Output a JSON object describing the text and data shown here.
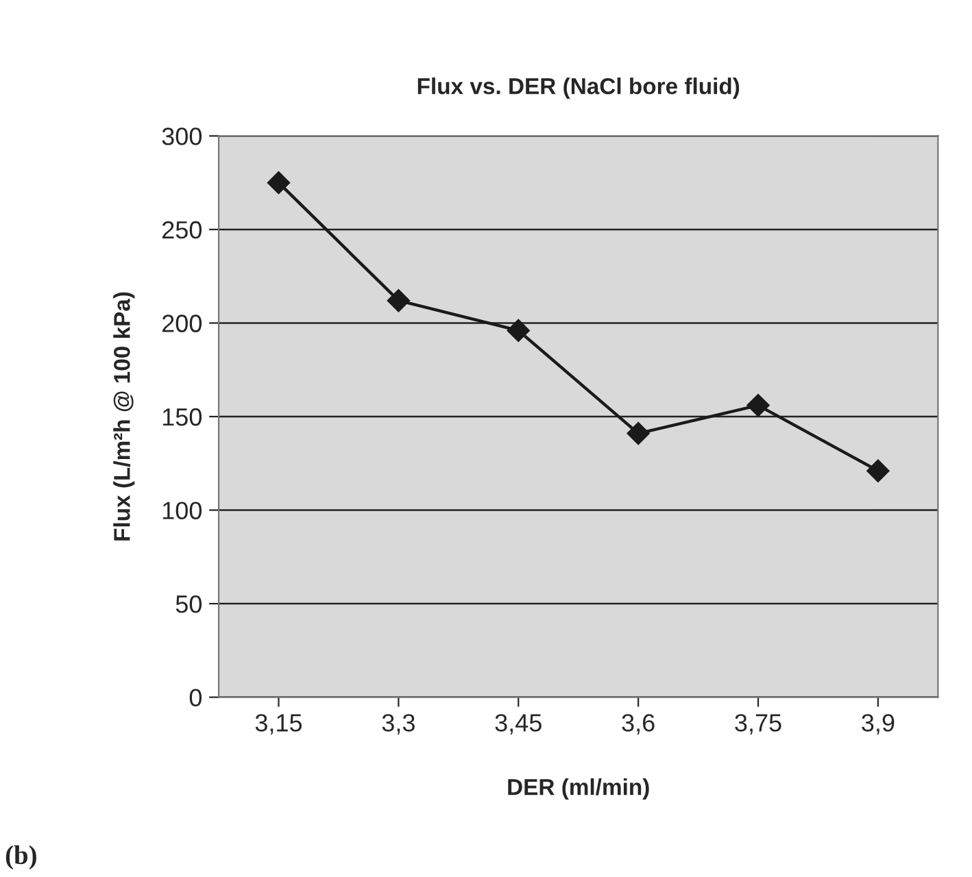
{
  "chart_data": {
    "type": "line",
    "title": "Flux vs. DER (NaCl bore fluid)",
    "xlabel": "DER (ml/min)",
    "ylabel": "Flux (L/m²h @ 100 kPa)",
    "categories": [
      "3,15",
      "3,3",
      "3,45",
      "3,6",
      "3,75",
      "3,9"
    ],
    "series": [
      {
        "color": "#1a1a1a",
        "values": [
          275,
          212,
          196,
          141,
          156,
          121
        ]
      }
    ],
    "ylim": [
      0,
      300
    ],
    "yticks": [
      0,
      50,
      100,
      150,
      200,
      250,
      300
    ],
    "grid": "y",
    "marker": "diamond",
    "line_style": "solid",
    "annotations": [
      "(b)"
    ]
  }
}
